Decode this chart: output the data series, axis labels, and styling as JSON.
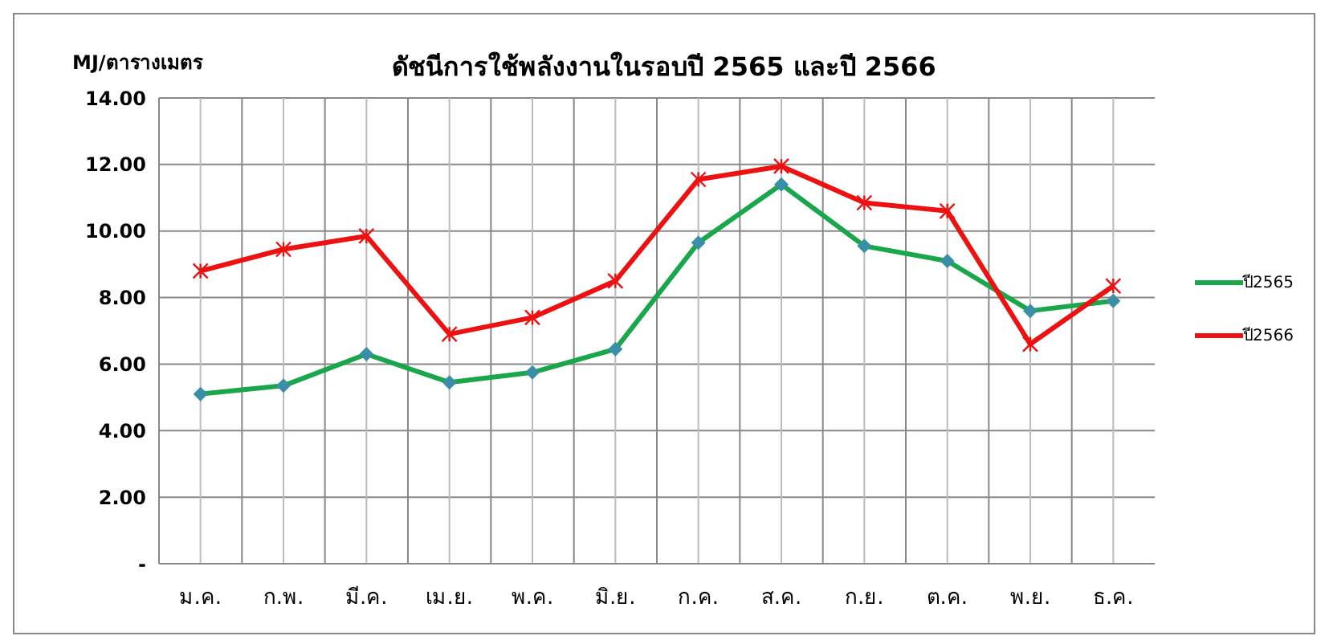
{
  "chart_data": {
    "type": "line",
    "title": "ดัชนีการใช้พลังงานในรอบปี 2565 และปี 2566",
    "ylabel": "MJ/ตารางเมตร",
    "categories": [
      "ม.ค.",
      "ก.พ.",
      "มี.ค.",
      "เม.ย.",
      "พ.ค.",
      "มิ.ย.",
      "ก.ค.",
      "ส.ค.",
      "ก.ย.",
      "ต.ค.",
      "พ.ย.",
      "ธ.ค."
    ],
    "series": [
      {
        "name": "ปี2565",
        "color": "#1aa64a",
        "marker": "diamond",
        "values": [
          5.1,
          5.35,
          6.3,
          5.45,
          5.75,
          6.45,
          9.65,
          11.4,
          9.55,
          9.1,
          7.6,
          7.9
        ]
      },
      {
        "name": "ปี2566",
        "color": "#ee1111",
        "marker": "cross",
        "values": [
          8.8,
          9.45,
          9.85,
          6.9,
          7.4,
          8.5,
          11.55,
          11.95,
          10.85,
          10.6,
          6.6,
          8.35
        ]
      }
    ],
    "ylim": [
      0,
      14
    ],
    "yticks": [
      {
        "value": 0,
        "label": "-"
      },
      {
        "value": 2,
        "label": "2.00"
      },
      {
        "value": 4,
        "label": "4.00"
      },
      {
        "value": 6,
        "label": "6.00"
      },
      {
        "value": 8,
        "label": "8.00"
      },
      {
        "value": 10,
        "label": "10.00"
      },
      {
        "value": 12,
        "label": "12.00"
      },
      {
        "value": 14,
        "label": "14.00"
      }
    ],
    "grid": true,
    "legend": "right",
    "line_style": "solid"
  }
}
